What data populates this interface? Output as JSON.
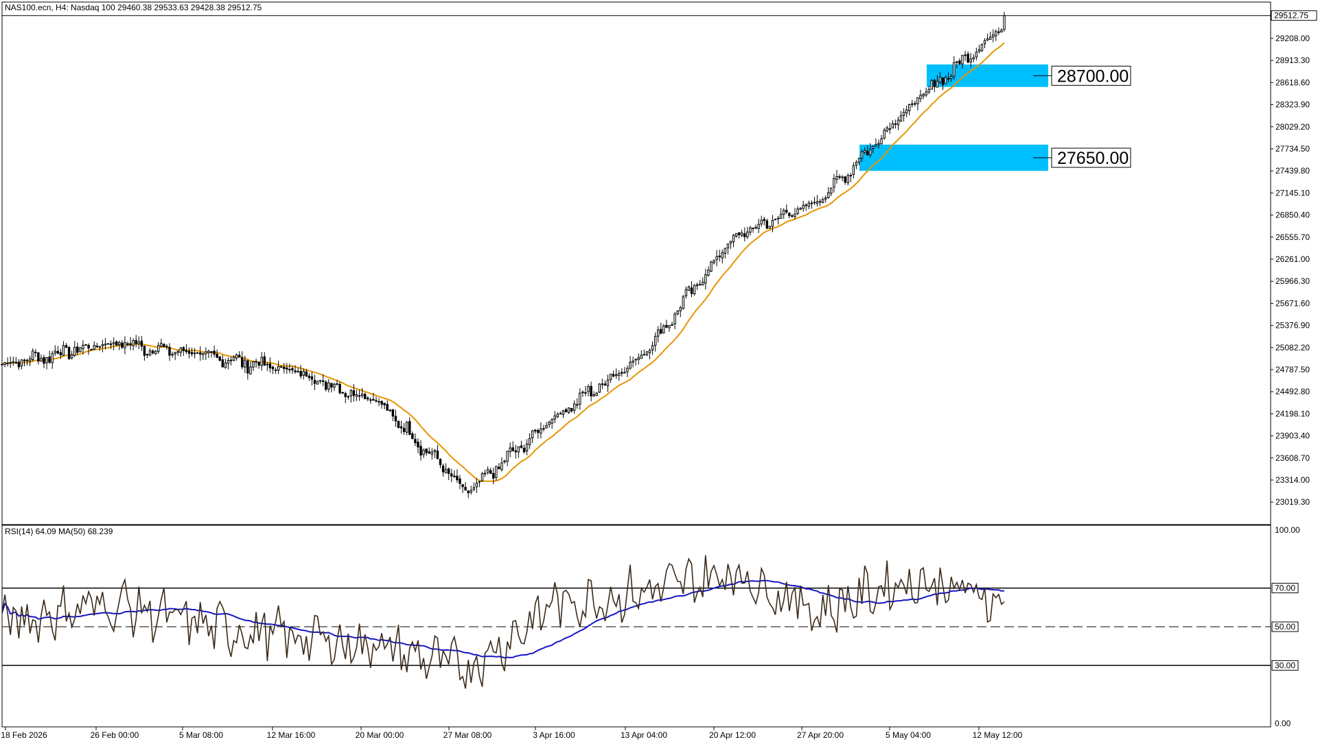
{
  "header": {
    "symbol_info": "NAS100.ecn, H4:  Nasdaq 100  29460.38 29533.63 29428.38 29512.75",
    "last_price": "29512.75"
  },
  "price_panel": {
    "price_ticks": [
      "29208.00",
      "28913.30",
      "28618.60",
      "28323.90",
      "28029.20",
      "27734.50",
      "27439.80",
      "27145.10",
      "26850.40",
      "26555.70",
      "26261.00",
      "25966.30",
      "25671.60",
      "25376.90",
      "25082.20",
      "24787.50",
      "24492.80",
      "24198.10",
      "23903.40",
      "23608.70",
      "23314.00",
      "23019.30"
    ],
    "zones": [
      {
        "label": "28700.00",
        "low": 28560,
        "high": 28860,
        "color": "#00BFFF"
      },
      {
        "label": "27650.00",
        "low": 27440,
        "high": 27790,
        "color": "#00BFFF"
      }
    ]
  },
  "rsi_panel": {
    "title": "RSI(14) 64.09 MA(50) 68.239",
    "levels": [
      "100.00",
      "70.00",
      "50.00",
      "30.00",
      "0.00"
    ]
  },
  "time_axis": [
    "18 Feb 2026",
    "26 Feb 00:00",
    "5 Mar 08:00",
    "12 Mar 16:00",
    "20 Mar 00:00",
    "27 Mar 08:00",
    "3 Apr 16:00",
    "13 Apr 04:00",
    "20 Apr 12:00",
    "27 Apr 20:00",
    "5 May 04:00",
    "12 May 12:00"
  ],
  "chart_data": {
    "type": "candlestick",
    "series": [
      {
        "name": "NAS100.ecn H4 close (approx.)",
        "x": [
          "18 Feb 2026",
          "26 Feb 00:00",
          "5 Mar 08:00",
          "12 Mar 16:00",
          "20 Mar 00:00",
          "27 Mar 08:00",
          "3 Apr 16:00",
          "13 Apr 04:00",
          "20 Apr 12:00",
          "27 Apr 20:00",
          "5 May 04:00",
          "12 May 12:00"
        ],
        "values": [
          24860,
          25150,
          24990,
          24780,
          24350,
          23150,
          24150,
          25000,
          26560,
          27050,
          28300,
          29320
        ]
      },
      {
        "name": "RSI(14) (approx.)",
        "x": [
          "18 Feb 2026",
          "26 Feb 00:00",
          "5 Mar 08:00",
          "12 Mar 16:00",
          "20 Mar 00:00",
          "27 Mar 08:00",
          "3 Apr 16:00",
          "13 Apr 04:00",
          "20 Apr 12:00",
          "27 Apr 20:00",
          "5 May 04:00",
          "12 May 12:00"
        ],
        "values": [
          52,
          63,
          50,
          45,
          40,
          28,
          62,
          68,
          78,
          58,
          75,
          64
        ]
      }
    ],
    "ylim": [
      22900,
      29600
    ],
    "rsi_ylim": [
      0,
      100
    ]
  },
  "colors": {
    "bull": "#000000",
    "bear": "#000000",
    "ma_price": "#E69500",
    "rsi_line": "#3A2A1A",
    "rsi_ma": "#1515C8",
    "zone": "#00BFFF"
  }
}
